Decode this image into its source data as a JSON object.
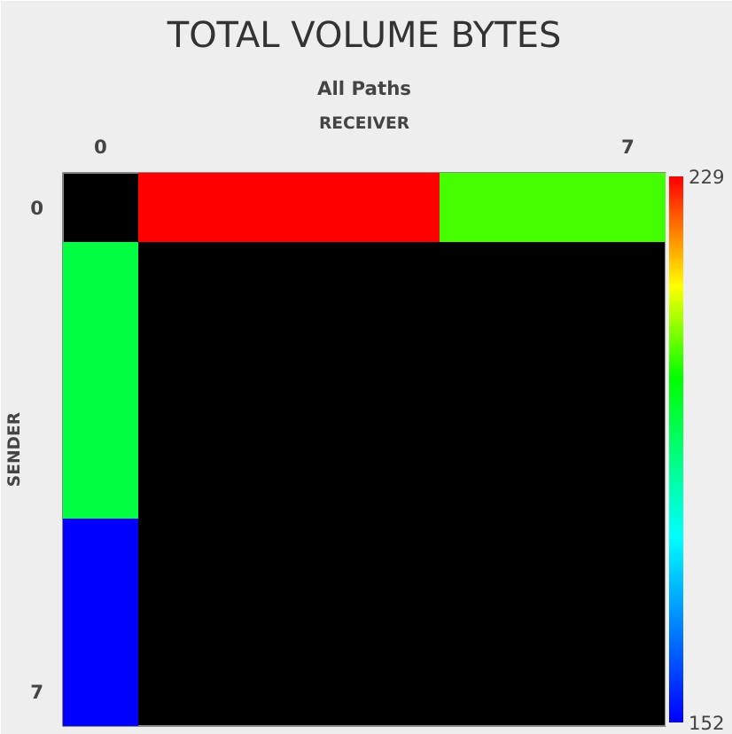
{
  "chart_data": {
    "type": "heatmap",
    "title": "TOTAL VOLUME BYTES",
    "subtitle": "All Paths",
    "xlabel": "RECEIVER",
    "ylabel": "SENDER",
    "categories": [
      "0",
      null,
      null,
      null,
      null,
      null,
      null,
      "7"
    ],
    "y_categories": [
      "0",
      null,
      null,
      null,
      null,
      null,
      null,
      "7"
    ],
    "cells": [
      [
        null,
        229,
        229,
        229,
        229,
        204,
        204,
        204
      ],
      [
        195,
        null,
        null,
        null,
        null,
        null,
        null,
        null
      ],
      [
        195,
        null,
        null,
        null,
        null,
        null,
        null,
        null
      ],
      [
        195,
        null,
        null,
        null,
        null,
        null,
        null,
        null
      ],
      [
        195,
        null,
        null,
        null,
        null,
        null,
        null,
        null
      ],
      [
        152,
        null,
        null,
        null,
        null,
        null,
        null,
        null
      ],
      [
        152,
        null,
        null,
        null,
        null,
        null,
        null,
        null
      ],
      [
        152,
        null,
        null,
        null,
        null,
        null,
        null,
        null
      ]
    ],
    "clim": [
      152,
      229
    ],
    "cticks": [
      152,
      229
    ]
  }
}
